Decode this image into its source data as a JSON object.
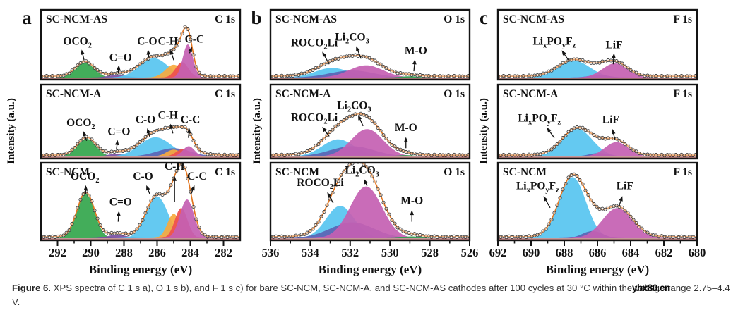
{
  "caption": {
    "label": "Figure 6.",
    "text": "XPS spectra of C 1 s a), O 1 s b), and F 1 s c) for bare SC-NCM, SC-NCM-A, and SC-NCM-AS cathodes after 100 cycles at 30 °C within the voltage range 2.75–4.4 V.",
    "watermark": "ybx80.cn"
  },
  "colors": {
    "green": "#33a64c",
    "purple": "#7a4fa3",
    "cyan": "#57c4f0",
    "navy": "#5b64b4",
    "orange": "#f7a93e",
    "red": "#ee4f4f",
    "magenta": "#c45fb2",
    "mo": "#2f9e4f",
    "envelope": "#e2751f",
    "marker": "#3c3c3c",
    "baseline": "#8b3030",
    "box": "#141414"
  },
  "chart_data": {
    "type": "line",
    "description": "XPS spectra with fitted Gaussian components; amp is fraction of subplot height, centers in eV",
    "panels": [
      {
        "panel_label": "a",
        "core_level": "C 1s",
        "xlabel": "Binding energy (eV)",
        "ylabel": "Intensity (a.u.)",
        "x_range": [
          293,
          281
        ],
        "x_ticks": [
          292,
          290,
          288,
          286,
          284,
          282
        ],
        "subplots": [
          {
            "sample": "SC-NCM-AS",
            "peaks": [
              {
                "species": "OCO_2",
                "center": 290.35,
                "sigma": 0.55,
                "amp": 0.23,
                "color": "green"
              },
              {
                "species": "C=O",
                "center": 288.4,
                "sigma": 0.55,
                "amp": 0.04,
                "color": "purple"
              },
              {
                "species": "C-O",
                "center": 286.2,
                "sigma": 0.85,
                "amp": 0.3,
                "color": "cyan"
              },
              {
                "species": "C-H",
                "center": 285.0,
                "sigma": 0.5,
                "amp": 0.2,
                "color": "orange"
              },
              {
                "species": "component",
                "center": 284.5,
                "sigma": 0.38,
                "amp": 0.24,
                "color": "red"
              },
              {
                "species": "C-C",
                "center": 284.15,
                "sigma": 0.3,
                "amp": 0.52,
                "color": "magenta"
              }
            ],
            "annotations": [
              {
                "label": "OCO_2",
                "x": 290.8,
                "y": 0.5,
                "arrow": [
                  290.4,
                  0.72,
                  290.55,
                  0.57
                ]
              },
              {
                "label": "C=O",
                "x": 288.2,
                "y": 0.73,
                "arrow": [
                  288.35,
                  0.9,
                  288.3,
                  0.79
                ]
              },
              {
                "label": "C-O",
                "x": 286.6,
                "y": 0.5,
                "arrow": [
                  286.5,
                  0.68,
                  286.55,
                  0.57
                ]
              },
              {
                "label": "C-H",
                "x": 285.35,
                "y": 0.5,
                "arrow": [
                  285.0,
                  0.72,
                  285.2,
                  0.57
                ]
              },
              {
                "label": "C-C",
                "x": 283.75,
                "y": 0.47,
                "arrow": [
                  284.05,
                  0.62,
                  283.9,
                  0.53
                ]
              }
            ]
          },
          {
            "sample": "SC-NCM-A",
            "peaks": [
              {
                "species": "OCO_2",
                "center": 290.25,
                "sigma": 0.55,
                "amp": 0.26,
                "color": "green"
              },
              {
                "species": "C=O",
                "center": 288.45,
                "sigma": 0.5,
                "amp": 0.04,
                "color": "purple"
              },
              {
                "species": "C-O",
                "center": 286.1,
                "sigma": 0.95,
                "amp": 0.28,
                "color": "cyan"
              },
              {
                "species": "component",
                "center": 285.0,
                "sigma": 1.0,
                "amp": 0.12,
                "color": "navy"
              },
              {
                "species": "C-H",
                "center": 285.0,
                "sigma": 0.45,
                "amp": 0.1,
                "color": "orange"
              },
              {
                "species": "component",
                "center": 284.45,
                "sigma": 0.4,
                "amp": 0.11,
                "color": "red"
              },
              {
                "species": "C-C",
                "center": 284.1,
                "sigma": 0.35,
                "amp": 0.15,
                "color": "magenta"
              }
            ],
            "annotations": [
              {
                "label": "OCO_2",
                "x": 290.6,
                "y": 0.56,
                "arrow": [
                  290.25,
                  0.76,
                  290.45,
                  0.63
                ]
              },
              {
                "label": "C=O",
                "x": 288.3,
                "y": 0.68,
                "arrow": [
                  288.45,
                  0.87,
                  288.38,
                  0.75
                ]
              },
              {
                "label": "C-O",
                "x": 286.7,
                "y": 0.52,
                "arrow": [
                  286.45,
                  0.7,
                  286.6,
                  0.59
                ]
              },
              {
                "label": "C-H",
                "x": 285.35,
                "y": 0.46,
                "arrow": [
                  285.05,
                  0.66,
                  285.2,
                  0.53
                ]
              },
              {
                "label": "C-C",
                "x": 284.0,
                "y": 0.52,
                "arrow": [
                  284.12,
                  0.72,
                  284.05,
                  0.59
                ]
              }
            ]
          },
          {
            "sample": "SC-NCM",
            "peaks": [
              {
                "species": "OCO_2",
                "center": 290.3,
                "sigma": 0.52,
                "amp": 0.62,
                "color": "green"
              },
              {
                "species": "C=O",
                "center": 288.4,
                "sigma": 0.55,
                "amp": 0.05,
                "color": "purple"
              },
              {
                "species": "C-O",
                "center": 286.0,
                "sigma": 0.65,
                "amp": 0.58,
                "color": "cyan"
              },
              {
                "species": "C-H",
                "center": 285.0,
                "sigma": 0.38,
                "amp": 0.34,
                "color": "orange"
              },
              {
                "species": "component",
                "center": 284.55,
                "sigma": 0.38,
                "amp": 0.42,
                "color": "red"
              },
              {
                "species": "C-C",
                "center": 284.2,
                "sigma": 0.42,
                "amp": 0.54,
                "color": "magenta"
              }
            ],
            "annotations": [
              {
                "label": "OCO_2",
                "x": 290.35,
                "y": 0.22,
                "arrow": [
                  290.3,
                  0.4,
                  290.3,
                  0.29
                ]
              },
              {
                "label": "C=O",
                "x": 288.2,
                "y": 0.55,
                "arrow": [
                  288.35,
                  0.76,
                  288.3,
                  0.62
                ]
              },
              {
                "label": "C-O",
                "x": 286.85,
                "y": 0.22,
                "arrow": [
                  286.45,
                  0.4,
                  286.65,
                  0.29
                ]
              },
              {
                "label": "C-H",
                "x": 284.95,
                "y": 0.09,
                "arrow": [
                  284.95,
                  0.5,
                  284.95,
                  0.17
                ]
              },
              {
                "label": "C-C",
                "x": 283.6,
                "y": 0.22,
                "arrow": [
                  283.95,
                  0.4,
                  283.75,
                  0.29
                ]
              }
            ]
          }
        ]
      },
      {
        "panel_label": "b",
        "core_level": "O 1s",
        "xlabel": "Binding energy (eV)",
        "ylabel": "Intensity (a.u.)",
        "x_range": [
          536,
          526
        ],
        "x_ticks": [
          536,
          534,
          532,
          530,
          528,
          526
        ],
        "subplots": [
          {
            "sample": "SC-NCM-AS",
            "peaks": [
              {
                "species": "ROCO_2Li",
                "center": 532.9,
                "sigma": 0.85,
                "amp": 0.15,
                "color": "cyan"
              },
              {
                "species": "component",
                "center": 531.9,
                "sigma": 1.1,
                "amp": 0.11,
                "color": "navy"
              },
              {
                "species": "Li_2CO_3",
                "center": 531.2,
                "sigma": 0.85,
                "amp": 0.19,
                "color": "magenta"
              },
              {
                "species": "M-O",
                "center": 529.0,
                "sigma": 0.45,
                "amp": 0.02,
                "color": "mo"
              }
            ],
            "annotations": [
              {
                "label": "ROCO_2Li",
                "x": 533.8,
                "y": 0.52,
                "arrow": [
                  533.05,
                  0.78,
                  533.4,
                  0.6
                ]
              },
              {
                "label": "Li_2CO_3",
                "x": 531.9,
                "y": 0.44,
                "arrow": [
                  531.45,
                  0.7,
                  531.7,
                  0.52
                ]
              },
              {
                "label": "M-O",
                "x": 528.7,
                "y": 0.63,
                "arrow": [
                  528.8,
                  0.88,
                  528.75,
                  0.71
                ]
              }
            ]
          },
          {
            "sample": "SC-NCM-A",
            "peaks": [
              {
                "species": "ROCO_2Li",
                "center": 532.6,
                "sigma": 0.8,
                "amp": 0.25,
                "color": "cyan"
              },
              {
                "species": "component",
                "center": 531.9,
                "sigma": 1.1,
                "amp": 0.15,
                "color": "navy"
              },
              {
                "species": "Li_2CO_3",
                "center": 531.15,
                "sigma": 0.8,
                "amp": 0.4,
                "color": "magenta"
              },
              {
                "species": "M-O",
                "center": 529.2,
                "sigma": 0.45,
                "amp": 0.02,
                "color": "mo"
              }
            ],
            "annotations": [
              {
                "label": "Li_2CO_3",
                "x": 531.8,
                "y": 0.33,
                "arrow": [
                  531.35,
                  0.56,
                  531.6,
                  0.41
                ]
              },
              {
                "label": "ROCO_2Li",
                "x": 533.8,
                "y": 0.49,
                "arrow": [
                  533.05,
                  0.7,
                  533.4,
                  0.57
                ]
              },
              {
                "label": "M-O",
                "x": 529.2,
                "y": 0.63,
                "arrow": [
                  529.2,
                  0.86,
                  529.2,
                  0.71
                ]
              }
            ]
          },
          {
            "sample": "SC-NCM",
            "peaks": [
              {
                "species": "ROCO_2Li",
                "center": 532.5,
                "sigma": 0.7,
                "amp": 0.45,
                "color": "cyan"
              },
              {
                "species": "component",
                "center": 531.9,
                "sigma": 1.1,
                "amp": 0.22,
                "color": "navy"
              },
              {
                "species": "Li_2CO_3",
                "center": 531.2,
                "sigma": 0.8,
                "amp": 0.72,
                "color": "magenta"
              },
              {
                "species": "M-O",
                "center": 528.9,
                "sigma": 0.45,
                "amp": 0.025,
                "color": "mo"
              }
            ],
            "annotations": [
              {
                "label": "Li_2CO_3",
                "x": 531.4,
                "y": 0.14,
                "arrow": [
                  531.15,
                  0.3,
                  531.3,
                  0.21
                ]
              },
              {
                "label": "ROCO_2Li",
                "x": 533.5,
                "y": 0.3,
                "arrow": [
                  532.85,
                  0.52,
                  533.15,
                  0.38
                ]
              },
              {
                "label": "M-O",
                "x": 528.9,
                "y": 0.53,
                "arrow": [
                  528.9,
                  0.76,
                  528.9,
                  0.61
                ]
              }
            ]
          }
        ]
      },
      {
        "panel_label": "c",
        "core_level": "F 1s",
        "xlabel": "Binding energy (eV)",
        "ylabel": "Intensity (a.u.)",
        "x_range": [
          692,
          680
        ],
        "x_ticks": [
          692,
          690,
          688,
          686,
          684,
          682,
          680
        ],
        "subplots": [
          {
            "sample": "SC-NCM-AS",
            "peaks": [
              {
                "species": "Li_xPO_yF_z",
                "center": 687.4,
                "sigma": 0.95,
                "amp": 0.26,
                "color": "cyan"
              },
              {
                "species": "component",
                "center": 685.9,
                "sigma": 0.6,
                "amp": 0.04,
                "color": "navy"
              },
              {
                "species": "LiF",
                "center": 684.95,
                "sigma": 0.75,
                "amp": 0.22,
                "color": "magenta"
              }
            ],
            "annotations": [
              {
                "label": "Li_xPO_yF_z",
                "x": 688.6,
                "y": 0.5,
                "arrow": [
                  687.75,
                  0.72,
                  688.15,
                  0.58
                ]
              },
              {
                "label": "LiF",
                "x": 685.0,
                "y": 0.55,
                "arrow": [
                  685.05,
                  0.78,
                  685.0,
                  0.62
                ]
              }
            ]
          },
          {
            "sample": "SC-NCM-A",
            "peaks": [
              {
                "species": "Li_xPO_yF_z",
                "center": 687.2,
                "sigma": 0.9,
                "amp": 0.4,
                "color": "cyan"
              },
              {
                "species": "component",
                "center": 685.9,
                "sigma": 0.6,
                "amp": 0.05,
                "color": "navy"
              },
              {
                "species": "LiF",
                "center": 684.85,
                "sigma": 0.7,
                "amp": 0.21,
                "color": "magenta"
              }
            ],
            "annotations": [
              {
                "label": "Li_xPO_yF_z",
                "x": 689.5,
                "y": 0.5,
                "arrow": [
                  688.6,
                  0.72,
                  689.05,
                  0.58
                ]
              },
              {
                "label": "LiF",
                "x": 685.2,
                "y": 0.52,
                "arrow": [
                  684.95,
                  0.74,
                  685.1,
                  0.6
                ]
              }
            ]
          },
          {
            "sample": "SC-NCM",
            "peaks": [
              {
                "species": "Li_xPO_yF_z",
                "center": 687.5,
                "sigma": 0.8,
                "amp": 0.85,
                "color": "cyan"
              },
              {
                "species": "component",
                "center": 686.3,
                "sigma": 0.6,
                "amp": 0.1,
                "color": "navy"
              },
              {
                "species": "LiF",
                "center": 684.8,
                "sigma": 0.9,
                "amp": 0.42,
                "color": "magenta"
              }
            ],
            "annotations": [
              {
                "label": "Li_xPO_yF_z",
                "x": 689.6,
                "y": 0.34,
                "arrow": [
                  688.85,
                  0.58,
                  689.25,
                  0.43
                ]
              },
              {
                "label": "LiF",
                "x": 684.35,
                "y": 0.34,
                "arrow": [
                  684.7,
                  0.56,
                  684.5,
                  0.43
                ]
              }
            ]
          }
        ]
      }
    ]
  }
}
